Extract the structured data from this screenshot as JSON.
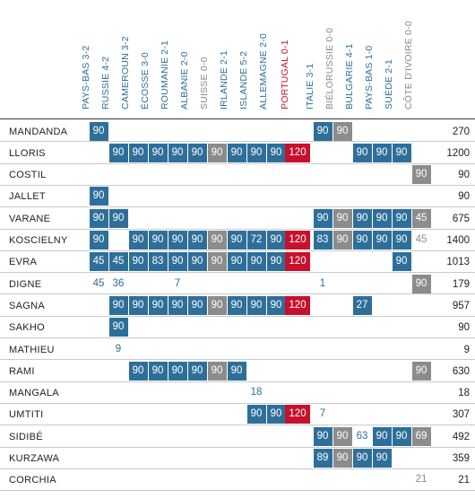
{
  "matches": [
    {
      "label": "PAYS-BAS 3-2",
      "result": "win"
    },
    {
      "label": "RUSSIE 4-2",
      "result": "win"
    },
    {
      "label": "CAMEROUN 3-2",
      "result": "win"
    },
    {
      "label": "ÉCOSSE 3-0",
      "result": "win"
    },
    {
      "label": "ROUMANIE 2-1",
      "result": "win"
    },
    {
      "label": "ALBANIE 2-0",
      "result": "win"
    },
    {
      "label": "SUISSE 0-0",
      "result": "draw"
    },
    {
      "label": "IRLANDE 2-1",
      "result": "win"
    },
    {
      "label": "ISLANDE 5-2",
      "result": "win"
    },
    {
      "label": "ALLEMAGNE 2-0",
      "result": "win"
    },
    {
      "label": "PORTUGAL 0-1",
      "result": "loss"
    },
    {
      "label": "ITALIE 3-1",
      "result": "win"
    },
    {
      "label": "BIÉLORUSSIE 0-0",
      "result": "draw"
    },
    {
      "label": "BULGARIE 4-1",
      "result": "win"
    },
    {
      "label": "PAYS-BAS 1-0",
      "result": "win"
    },
    {
      "label": "SUÈDE 2-1",
      "result": "win"
    },
    {
      "label": "CÔTE D'IVOIRE 0-0",
      "result": "draw"
    }
  ],
  "players": [
    {
      "name": "MANDANDA",
      "total": "270",
      "cells": [
        [
          "0",
          "90",
          "s"
        ],
        [
          "11",
          "90",
          "s"
        ],
        [
          "12",
          "90",
          "s"
        ]
      ]
    },
    {
      "name": "LLORIS",
      "total": "1200",
      "cells": [
        [
          "1",
          "90",
          "s"
        ],
        [
          "2",
          "90",
          "s"
        ],
        [
          "3",
          "90",
          "s"
        ],
        [
          "4",
          "90",
          "s"
        ],
        [
          "5",
          "90",
          "s"
        ],
        [
          "6",
          "90",
          "s"
        ],
        [
          "7",
          "90",
          "s"
        ],
        [
          "8",
          "90",
          "s"
        ],
        [
          "9",
          "90",
          "s"
        ],
        [
          "10",
          "120",
          "s"
        ],
        [
          "13",
          "90",
          "s"
        ],
        [
          "14",
          "90",
          "s"
        ],
        [
          "15",
          "90",
          "s"
        ]
      ]
    },
    {
      "name": "COSTIL",
      "total": "90",
      "cells": [
        [
          "16",
          "90",
          "s"
        ]
      ]
    },
    {
      "name": "JALLET",
      "total": "90",
      "cells": [
        [
          "0",
          "90",
          "s"
        ]
      ]
    },
    {
      "name": "VARANE",
      "total": "675",
      "cells": [
        [
          "0",
          "90",
          "s"
        ],
        [
          "1",
          "90",
          "s"
        ],
        [
          "11",
          "90",
          "s"
        ],
        [
          "12",
          "90",
          "s"
        ],
        [
          "13",
          "90",
          "s"
        ],
        [
          "14",
          "90",
          "s"
        ],
        [
          "15",
          "90",
          "s"
        ],
        [
          "16",
          "45",
          "s"
        ]
      ]
    },
    {
      "name": "KOSCIELNY",
      "total": "1400",
      "cells": [
        [
          "0",
          "90",
          "s"
        ],
        [
          "2",
          "90",
          "s"
        ],
        [
          "3",
          "90",
          "s"
        ],
        [
          "4",
          "90",
          "s"
        ],
        [
          "5",
          "90",
          "s"
        ],
        [
          "6",
          "90",
          "s"
        ],
        [
          "7",
          "90",
          "s"
        ],
        [
          "8",
          "72",
          "s"
        ],
        [
          "9",
          "90",
          "s"
        ],
        [
          "10",
          "120",
          "s"
        ],
        [
          "11",
          "83",
          "s"
        ],
        [
          "12",
          "90",
          "s"
        ],
        [
          "13",
          "90",
          "s"
        ],
        [
          "14",
          "90",
          "s"
        ],
        [
          "15",
          "90",
          "s"
        ],
        [
          "16",
          "45",
          "b"
        ]
      ]
    },
    {
      "name": "EVRA",
      "total": "1013",
      "cells": [
        [
          "0",
          "45",
          "s"
        ],
        [
          "1",
          "45",
          "s"
        ],
        [
          "2",
          "90",
          "s"
        ],
        [
          "3",
          "83",
          "s"
        ],
        [
          "4",
          "90",
          "s"
        ],
        [
          "5",
          "90",
          "s"
        ],
        [
          "6",
          "90",
          "s"
        ],
        [
          "7",
          "90",
          "s"
        ],
        [
          "8",
          "90",
          "s"
        ],
        [
          "9",
          "90",
          "s"
        ],
        [
          "10",
          "120",
          "s"
        ],
        [
          "15",
          "90",
          "s"
        ]
      ]
    },
    {
      "name": "DIGNE",
      "total": "179",
      "cells": [
        [
          "0",
          "45",
          "b"
        ],
        [
          "1",
          "36",
          "b"
        ],
        [
          "4",
          "7",
          "b"
        ],
        [
          "11",
          "1",
          "b"
        ],
        [
          "16",
          "90",
          "s"
        ]
      ]
    },
    {
      "name": "SAGNA",
      "total": "957",
      "cells": [
        [
          "1",
          "90",
          "s"
        ],
        [
          "2",
          "90",
          "s"
        ],
        [
          "3",
          "90",
          "s"
        ],
        [
          "4",
          "90",
          "s"
        ],
        [
          "5",
          "90",
          "s"
        ],
        [
          "6",
          "90",
          "s"
        ],
        [
          "7",
          "90",
          "s"
        ],
        [
          "8",
          "90",
          "s"
        ],
        [
          "9",
          "90",
          "s"
        ],
        [
          "10",
          "120",
          "s"
        ],
        [
          "13",
          "27",
          "s"
        ]
      ]
    },
    {
      "name": "SAKHO",
      "total": "90",
      "cells": [
        [
          "1",
          "90",
          "s"
        ]
      ]
    },
    {
      "name": "MATHIEU",
      "total": "9",
      "cells": [
        [
          "1",
          "9",
          "b"
        ]
      ]
    },
    {
      "name": "RAMI",
      "total": "630",
      "cells": [
        [
          "2",
          "90",
          "s"
        ],
        [
          "3",
          "90",
          "s"
        ],
        [
          "4",
          "90",
          "s"
        ],
        [
          "5",
          "90",
          "s"
        ],
        [
          "6",
          "90",
          "s"
        ],
        [
          "7",
          "90",
          "s"
        ],
        [
          "16",
          "90",
          "s"
        ]
      ]
    },
    {
      "name": "MANGALA",
      "total": "18",
      "cells": [
        [
          "8",
          "18",
          "b"
        ]
      ]
    },
    {
      "name": "UMTITI",
      "total": "307",
      "cells": [
        [
          "8",
          "90",
          "s"
        ],
        [
          "9",
          "90",
          "s"
        ],
        [
          "10",
          "120",
          "s"
        ],
        [
          "11",
          "7",
          "b"
        ]
      ]
    },
    {
      "name": "SIDIBÉ",
      "total": "492",
      "cells": [
        [
          "11",
          "90",
          "s"
        ],
        [
          "12",
          "90",
          "s"
        ],
        [
          "13",
          "63",
          "b"
        ],
        [
          "14",
          "90",
          "s"
        ],
        [
          "15",
          "90",
          "s"
        ],
        [
          "16",
          "69",
          "s"
        ]
      ]
    },
    {
      "name": "KURZAWA",
      "total": "359",
      "cells": [
        [
          "11",
          "89",
          "s"
        ],
        [
          "12",
          "90",
          "s"
        ],
        [
          "13",
          "90",
          "s"
        ],
        [
          "14",
          "90",
          "s"
        ]
      ]
    },
    {
      "name": "CORCHIA",
      "total": "21",
      "cells": [
        [
          "16",
          "21",
          "b"
        ]
      ]
    }
  ]
}
